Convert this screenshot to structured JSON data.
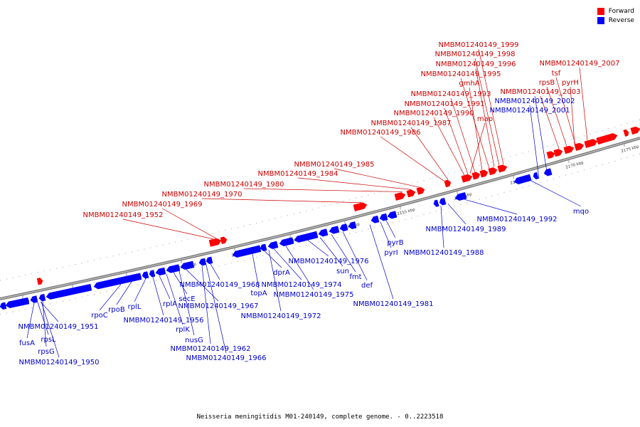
{
  "legend": {
    "forward": {
      "label": "Forward",
      "color": "#ff0000"
    },
    "reverse": {
      "label": "Reverse",
      "color": "#0000ff"
    }
  },
  "caption": "Neisseria meningitidis M01-240149, complete genome. - 0..2223518",
  "ticks": [
    "2120 kbp",
    "2125 kbp",
    "2130 kbp",
    "2135 kbp",
    "2140 kbp",
    "2145 kbp",
    "2150 kbp",
    "2155 kbp",
    "2160 kbp",
    "2165 kbp",
    "2170 kbp",
    "2175 kbp"
  ],
  "forward_labels": [
    "NMBM01240149_1999",
    "NMBM01240149_1998",
    "NMBM01240149_1996",
    "NMBM01240149_1995",
    "gmhA",
    "NMBM01240149_1993",
    "NMBM01240149_1991",
    "NMBM01240149_1990",
    "map",
    "NMBM01240149_1987",
    "NMBM01240149_1986",
    "NMBM01240149_1985",
    "NMBM01240149_1984",
    "NMBM01240149_1980",
    "NMBM01240149_1970",
    "NMBM01240149_1969",
    "NMBM01240149_1952",
    "NMBM01240149_2007",
    "tsf",
    "rpsB",
    "pyrH",
    "NMBM01240149_2003"
  ],
  "reverse_labels": [
    "NMBM01240149_2002",
    "NMBM01240149_2001",
    "NMBM01240149_1951",
    "fusA",
    "rpsL",
    "rpsG",
    "NMBM01240149_1950",
    "rpoC",
    "rpoB",
    "rplL",
    "NMBM01240149_1956",
    "rplA",
    "rplK",
    "secE",
    "nusG",
    "NMBM01240149_1967",
    "NMBM01240149_1962",
    "NMBM01240149_1966",
    "NMBM01240149_1968",
    "topA",
    "dprA",
    "NMBM01240149_1974",
    "NMBM01240149_1972",
    "NMBM01240149_1975",
    "NMBM01240149_1976",
    "sun",
    "fmt",
    "def",
    "pyrB",
    "pyrI",
    "NMBM01240149_1981",
    "NMBM01240149_1988",
    "NMBM01240149_1989",
    "NMBM01240149_1992",
    "mqo"
  ]
}
